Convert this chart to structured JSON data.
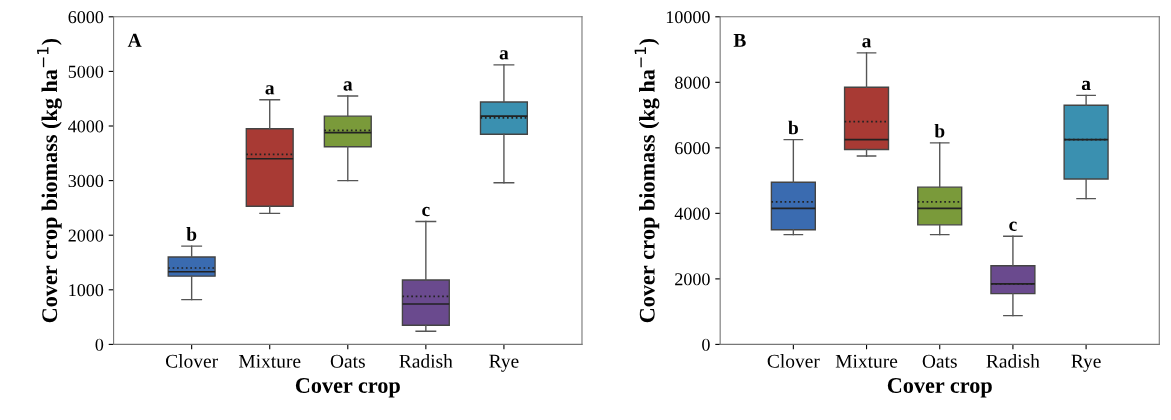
{
  "chart_data": [
    {
      "type": "box",
      "xlabel": "Cover crop",
      "ylabel": "Cover crop biomass (kg ha$^{−1}$)",
      "categories": [
        "Clover",
        "Mixture",
        "Oats",
        "Radish",
        "Rye"
      ],
      "colors": [
        "#3a6bb0",
        "#a83a34",
        "#7a9a3a",
        "#6a4a8e",
        "#3a90b0"
      ],
      "boxes": [
        {
          "low": 820,
          "q1": 1250,
          "median": 1330,
          "mean": 1400,
          "q3": 1600,
          "high": 1800
        },
        {
          "low": 2400,
          "q1": 2530,
          "median": 3400,
          "mean": 3480,
          "q3": 3950,
          "high": 4480
        },
        {
          "low": 3000,
          "q1": 3620,
          "median": 3880,
          "mean": 3920,
          "q3": 4180,
          "high": 4550
        },
        {
          "low": 240,
          "q1": 350,
          "median": 740,
          "mean": 880,
          "q3": 1180,
          "high": 2250
        },
        {
          "low": 2960,
          "q1": 3850,
          "median": 4180,
          "mean": 4150,
          "q3": 4440,
          "high": 5120
        }
      ],
      "ylim": [
        0,
        6000
      ],
      "yticks": [
        0,
        1000,
        2000,
        3000,
        4000,
        5000,
        6000
      ],
      "annotations": [
        "A",
        {
          "text": "b",
          "x": "Clover",
          "y": 1800
        },
        {
          "text": "a",
          "x": "Mixture",
          "y": 4480
        },
        {
          "text": "a",
          "x": "Oats",
          "y": 4550
        },
        {
          "text": "c",
          "x": "Radish",
          "y": 2250
        },
        {
          "text": "a",
          "x": "Rye",
          "y": 5120
        }
      ]
    },
    {
      "type": "box",
      "xlabel": "Cover crop",
      "ylabel": "Cover crop biomass (kg ha$^{−1}$)",
      "categories": [
        "Clover",
        "Mixture",
        "Oats",
        "Radish",
        "Rye"
      ],
      "colors": [
        "#3a6bb0",
        "#a83a34",
        "#7a9a3a",
        "#6a4a8e",
        "#3a90b0"
      ],
      "boxes": [
        {
          "low": 3350,
          "q1": 3500,
          "median": 4150,
          "mean": 4350,
          "q3": 4950,
          "high": 6250
        },
        {
          "low": 5750,
          "q1": 5950,
          "median": 6250,
          "mean": 6800,
          "q3": 7850,
          "high": 8900
        },
        {
          "low": 3350,
          "q1": 3650,
          "median": 4150,
          "mean": 4350,
          "q3": 4800,
          "high": 6150
        },
        {
          "low": 880,
          "q1": 1550,
          "median": 1850,
          "mean": 1850,
          "q3": 2400,
          "high": 3300
        },
        {
          "low": 4450,
          "q1": 5050,
          "median": 6250,
          "mean": 6250,
          "q3": 7300,
          "high": 7600
        }
      ],
      "ylim": [
        0,
        10000
      ],
      "yticks": [
        0,
        2000,
        4000,
        6000,
        8000,
        10000
      ],
      "annotations": [
        "B",
        {
          "text": "b",
          "x": "Clover",
          "y": 6250
        },
        {
          "text": "a",
          "x": "Mixture",
          "y": 8900
        },
        {
          "text": "b",
          "x": "Oats",
          "y": 6150
        },
        {
          "text": "c",
          "x": "Radish",
          "y": 3300
        },
        {
          "text": "a",
          "x": "Rye",
          "y": 7600
        }
      ]
    }
  ]
}
